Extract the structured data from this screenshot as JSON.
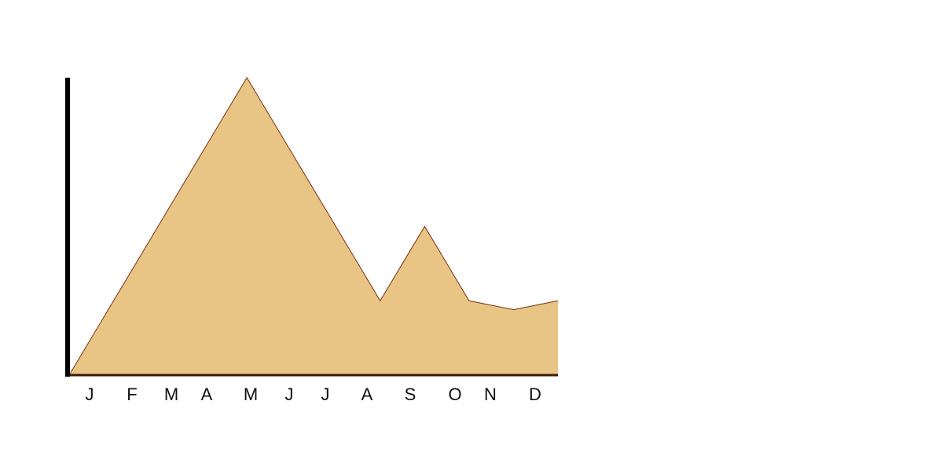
{
  "chart_data": {
    "type": "area",
    "categories": [
      "J",
      "F",
      "M",
      "A",
      "M",
      "J",
      "J",
      "A",
      "S",
      "O",
      "N",
      "D"
    ],
    "values": [
      0,
      5,
      10,
      15,
      20,
      15,
      10,
      5,
      10,
      5,
      4.4,
      5
    ],
    "ylim": [
      0,
      20
    ],
    "grid": false,
    "legend": "none",
    "title": "",
    "xlabel": "",
    "ylabel": "",
    "colors": {
      "fill": "#E8C584",
      "stroke": "#7A2E10",
      "y_axis": "#000000",
      "x_axis": "#3A1A0A"
    }
  }
}
